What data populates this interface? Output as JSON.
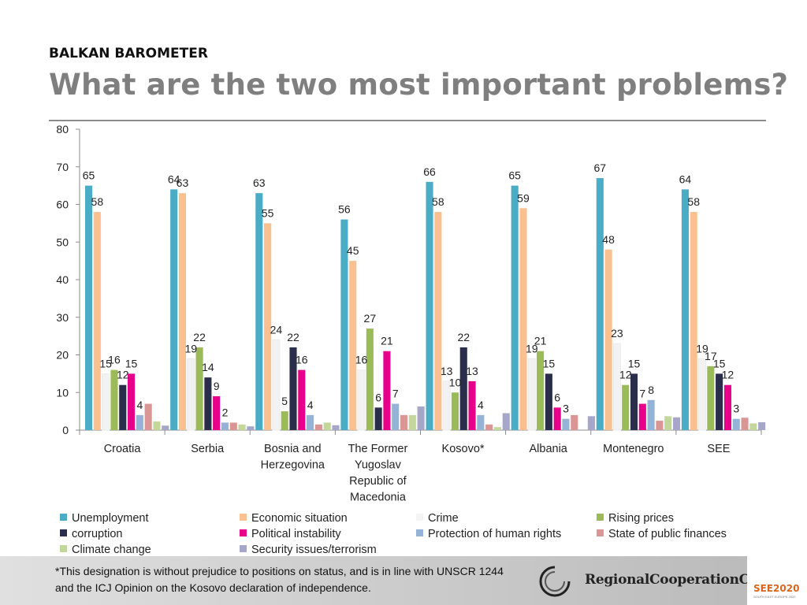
{
  "header": {
    "kicker": "BALKAN BAROMETER",
    "title": "What are the two most important problems?"
  },
  "chart_data": {
    "type": "bar",
    "title": "",
    "xlabel": "",
    "ylabel": "",
    "ylim": [
      0,
      80
    ],
    "yticks": [
      0,
      10,
      20,
      30,
      40,
      50,
      60,
      70,
      80
    ],
    "grid": false,
    "legend_position": "bottom",
    "categories": [
      "Croatia",
      "Serbia",
      "Bosnia and Herzegovina",
      "The Former Yugoslav Republic of Macedonia",
      "Kosovo*",
      "Albania",
      "Montenegro",
      "SEE"
    ],
    "category_lines": [
      [
        "Croatia"
      ],
      [
        "Serbia"
      ],
      [
        "Bosnia and",
        "Herzegovina"
      ],
      [
        "The Former",
        "Yugoslav",
        "Republic of",
        "Macedonia"
      ],
      [
        "Kosovo*"
      ],
      [
        "Albania"
      ],
      [
        "Montenegro"
      ],
      [
        "SEE"
      ]
    ],
    "series": [
      {
        "name": "Unemployment",
        "color": "#4bacc6",
        "values": [
          65,
          64,
          63,
          56,
          66,
          65,
          67,
          64
        ],
        "labels": [
          "65",
          "64",
          "63",
          "56",
          "66",
          "65",
          "67",
          "64"
        ]
      },
      {
        "name": "Economic situation",
        "color": "#fac090",
        "values": [
          58,
          63,
          55,
          45,
          58,
          59,
          48,
          58
        ],
        "labels": [
          "58",
          "63",
          "55",
          "45",
          "58",
          "59",
          "48",
          "58"
        ]
      },
      {
        "name": "Crime",
        "color": "#f2f2f2",
        "values": [
          15,
          19,
          24,
          16,
          13,
          19,
          23,
          19
        ],
        "labels": [
          "15",
          "19",
          "24",
          "16",
          "13",
          "19",
          "23",
          "19"
        ]
      },
      {
        "name": "Rising prices",
        "color": "#9bbb59",
        "values": [
          16,
          22,
          5,
          27,
          10,
          21,
          12,
          17
        ],
        "labels": [
          "16",
          "22",
          "5",
          "27",
          "10",
          "21",
          "12",
          "17"
        ]
      },
      {
        "name": "corruption",
        "color": "#2b2e4a",
        "values": [
          12,
          14,
          22,
          6,
          22,
          15,
          15,
          15
        ],
        "labels": [
          "12",
          "14",
          "22",
          "6",
          "22",
          "15",
          "15",
          "15"
        ]
      },
      {
        "name": "Political instability",
        "color": "#e6008a",
        "values": [
          15,
          9,
          16,
          21,
          13,
          6,
          7,
          12
        ],
        "labels": [
          "15",
          "9",
          "16",
          "21",
          "13",
          "6",
          "7",
          "12"
        ]
      },
      {
        "name": "Protection of human rights",
        "color": "#95b3d7",
        "values": [
          4,
          2,
          4,
          7,
          4,
          3,
          8,
          3
        ],
        "labels": [
          "4",
          "2",
          "4",
          "7",
          "4",
          "3",
          "8",
          "3"
        ]
      },
      {
        "name": "State of public finances",
        "color": "#d99694",
        "values": [
          7,
          2,
          1.5,
          4,
          1.5,
          4,
          2.5,
          3.3
        ],
        "labels": []
      },
      {
        "name": "Climate change",
        "color": "#c4d79b",
        "values": [
          2.3,
          1.5,
          2,
          4,
          0.8,
          0,
          3.7,
          1.8
        ],
        "labels": []
      },
      {
        "name": "Security issues/terrorism",
        "color": "#a6a6c8",
        "values": [
          1.2,
          1,
          1.3,
          6.3,
          4.5,
          3.7,
          3.4,
          2.1
        ],
        "labels": []
      }
    ]
  },
  "footer": {
    "footnote": "*This designation is without prejudice to positions on status, and is in line with UNSCR 1244 and the ICJ Opinion on the Kosovo declaration of independence.",
    "org_name": "RegionalCooperationCouncil",
    "badge": "SEE2020",
    "badge_sub": "SOUTH EAST EUROPE 2020"
  }
}
